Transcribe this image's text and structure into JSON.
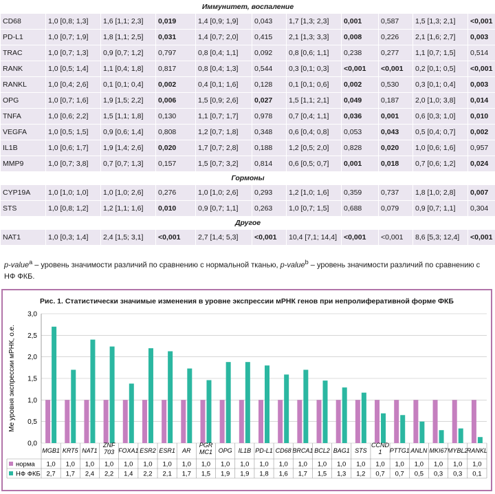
{
  "table": {
    "sections": [
      {
        "title": "Иммунитет, воспаление",
        "rows": [
          {
            "gene": "CD68",
            "cells": [
              "1,0 [0,8; 1,3]",
              "1,6 [1,1; 2,3]",
              "0,019",
              "1,4 [0,9; 1,9]",
              "0,043",
              "1,7 [1,3; 2,3]",
              "0,001",
              "0,587",
              "1,5 [1,3; 2,1]",
              "<0,001"
            ],
            "bold": [
              2,
              6,
              9
            ]
          },
          {
            "gene": "PD-L1",
            "cells": [
              "1,0 [0,7; 1,9]",
              "1,8 [1,1; 2,5]",
              "0,031",
              "1,4 [0,7; 2,0]",
              "0,415",
              "2,1 [1,3; 3,3]",
              "0,008",
              "0,226",
              "2,1 [1,6; 2,7]",
              "0,003"
            ],
            "bold": [
              2,
              6,
              9
            ]
          },
          {
            "gene": "TRAC",
            "cells": [
              "1,0 [0,7; 1,3]",
              "0,9 [0,7; 1,2]",
              "0,797",
              "0,8 [0,4; 1,1]",
              "0,092",
              "0,8 [0,6; 1,1]",
              "0,238",
              "0,277",
              "1,1 [0,7; 1,5]",
              "0,514"
            ],
            "bold": []
          },
          {
            "gene": "RANK",
            "cells": [
              "1,0 [0,5; 1,4]",
              "1,1 [0,4; 1,8]",
              "0,817",
              "0,8 [0,4; 1,3]",
              "0,544",
              "0,3 [0,1; 0,3]",
              "<0,001",
              "<0,001",
              "0,2 [0,1; 0,5]",
              "<0,001"
            ],
            "bold": [
              6,
              7,
              9
            ]
          },
          {
            "gene": "RANKL",
            "cells": [
              "1,0 [0,4; 2,6]",
              "0,1 [0,1; 0,4]",
              "0,002",
              "0,4 [0,1; 1,6]",
              "0,128",
              "0,1 [0,1; 0,6]",
              "0,002",
              "0,530",
              "0,3 [0,1; 0,4]",
              "0,003"
            ],
            "bold": [
              2,
              6,
              9
            ]
          },
          {
            "gene": "OPG",
            "cells": [
              "1,0 [0,7; 1,6]",
              "1,9 [1,5; 2,2]",
              "0,006",
              "1,5 [0,9; 2,6]",
              "0,027",
              "1,5 [1,1; 2,1]",
              "0,049",
              "0,187",
              "2,0 [1,0; 3,8]",
              "0,014"
            ],
            "bold": [
              2,
              4,
              6,
              9
            ]
          },
          {
            "gene": "TNFA",
            "cells": [
              "1,0 [0,6; 2,2]",
              "1,5 [1,1; 1,8]",
              "0,130",
              "1,1 [0,7; 1,7]",
              "0,978",
              "0,7 [0,4; 1,1]",
              "0,036",
              "0,001",
              "0,6 [0,3; 1,0]",
              "0,010"
            ],
            "bold": [
              6,
              7,
              9
            ]
          },
          {
            "gene": "VEGFA",
            "cells": [
              "1,0 [0,5; 1,5]",
              "0,9 [0,6; 1,4]",
              "0,808",
              "1,2 [0,7; 1,8]",
              "0,348",
              "0,6 [0,4; 0,8]",
              "0,053",
              "0,043",
              "0,5 [0,4; 0,7]",
              "0,002"
            ],
            "bold": [
              7,
              9
            ]
          },
          {
            "gene": "IL1B",
            "cells": [
              "1,0 [0,6; 1,7]",
              "1,9 [1,4; 2,6]",
              "0,020",
              "1,7 [0,7; 2,8]",
              "0,188",
              "1,2 [0,5; 2,0]",
              "0,828",
              "0,020",
              "1,0 [0,6; 1,6]",
              "0,957"
            ],
            "bold": [
              2,
              7
            ]
          },
          {
            "gene": "MMP9",
            "cells": [
              "1,0 [0,7; 3,8]",
              "0,7 [0,7; 1,3]",
              "0,157",
              "1,5 [0,7; 3,2]",
              "0,814",
              "0,6 [0,5; 0,7]",
              "0,001",
              "0,018",
              "0,7 [0,6; 1,2]",
              "0,024"
            ],
            "bold": [
              6,
              7,
              9
            ]
          }
        ]
      },
      {
        "title": "Гормоны",
        "rows": [
          {
            "gene": "CYP19A",
            "cells": [
              "1,0 [1,0; 1,0]",
              "1,0 [1,0; 2,6]",
              "0,276",
              "1,0 [1,0; 2,6]",
              "0,293",
              "1,2 [1,0; 1,6]",
              "0,359",
              "0,737",
              "1,8 [1,0; 2,8]",
              "0,007"
            ],
            "bold": [
              9
            ]
          },
          {
            "gene": "STS",
            "cells": [
              "1,0 [0,8; 1,2]",
              "1,2 [1,1; 1,6]",
              "0,010",
              "0,9 [0,7; 1,1]",
              "0,263",
              "1,0 [0,7; 1,5]",
              "0,688",
              "0,079",
              "0,9 [0,7; 1,1]",
              "0,304"
            ],
            "bold": [
              2
            ]
          }
        ]
      },
      {
        "title": "Другое",
        "rows": [
          {
            "gene": "NAT1",
            "cells": [
              "1,0 [0,3; 1,4]",
              "2,4 [1,5; 3,1]",
              "<0,001",
              "2,7 [1,4; 5,3]",
              "<0,001",
              "10,4 [7,1; 14,4]",
              "<0,001",
              "<0,001",
              "8,6 [5,3; 12,4]",
              "<0,001"
            ],
            "bold": [
              2,
              4,
              6,
              9
            ]
          }
        ]
      }
    ]
  },
  "footnote": {
    "pa": "p-value",
    "pa_sup": "a",
    "text1": " – уровень значимости различий по сравнению с нормальной тканью, ",
    "pb": "p-value",
    "pb_sup": "b",
    "text2": " – уровень значимости различий по сравнению с НФ ФКБ."
  },
  "figure": {
    "title": "Рис. 1. Статистически значимые изменения в уровне экспрессии мРНК генов при непролиферативной форме ФКБ",
    "legend_row_labels": [
      "норма",
      "НФ ФКБ"
    ],
    "colors": {
      "norm": "#c57fbf",
      "nf": "#2bb7a1",
      "frame": "#b274a9",
      "grid": "#bdbdbd"
    }
  },
  "chart_data": {
    "type": "bar",
    "title": "Рис. 1. Статистически значимые изменения в уровне экспрессии мРНК генов при непролиферативной форме ФКБ",
    "ylabel": "Ме уровня экспрессии мРНК, о.е.",
    "ylim": [
      0,
      3.0
    ],
    "yticks": [
      "0,0",
      "0,5",
      "1,0",
      "1,5",
      "2,0",
      "2,5",
      "3,0"
    ],
    "categories": [
      "MGB1",
      "KRT5",
      "NAT1",
      "ZNF 703",
      "FOXA1",
      "ESR2",
      "ESR1",
      "AR",
      "PGR MC1",
      "OPG",
      "IL1B",
      "PD-L1",
      "CD68",
      "BRCA1",
      "BCL2",
      "BAG1",
      "STS",
      "CCND 1",
      "PTTG1",
      "ANLN",
      "MKI67",
      "MYBL2",
      "RANKL"
    ],
    "series": [
      {
        "name": "норма",
        "values": [
          1.0,
          1.0,
          1.0,
          1.0,
          1.0,
          1.0,
          1.0,
          1.0,
          1.0,
          1.0,
          1.0,
          1.0,
          1.0,
          1.0,
          1.0,
          1.0,
          1.0,
          1.0,
          1.0,
          1.0,
          1.0,
          1.0,
          1.0
        ],
        "labels": [
          "1,0",
          "1,0",
          "1,0",
          "1,0",
          "1,0",
          "1,0",
          "1,0",
          "1,0",
          "1,0",
          "1,0",
          "1,0",
          "1,0",
          "1,0",
          "1,0",
          "1,0",
          "1,0",
          "1,0",
          "1,0",
          "1,0",
          "1,0",
          "1,0",
          "1,0",
          "1,0"
        ]
      },
      {
        "name": "НФ ФКБ",
        "values": [
          2.7,
          1.7,
          2.4,
          2.24,
          1.38,
          2.2,
          2.13,
          1.73,
          1.46,
          1.88,
          1.88,
          1.8,
          1.59,
          1.7,
          1.45,
          1.29,
          1.17,
          0.69,
          0.65,
          0.5,
          0.3,
          0.34,
          0.14
        ],
        "labels": [
          "2,7",
          "1,7",
          "2,4",
          "2,2",
          "1,4",
          "2,2",
          "2,1",
          "1,7",
          "1,5",
          "1,9",
          "1,9",
          "1,8",
          "1,6",
          "1,7",
          "1,5",
          "1,3",
          "1,2",
          "0,7",
          "0,7",
          "0,5",
          "0,3",
          "0,3",
          "0,1"
        ]
      }
    ]
  }
}
